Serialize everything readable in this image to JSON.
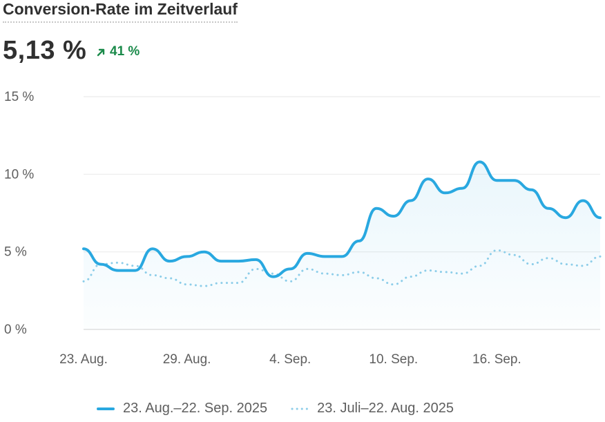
{
  "header": {
    "title": "Conversion-Rate im Zeitverlauf",
    "value": "5,13 %",
    "delta": "41 %",
    "delta_color": "#1a8a4a"
  },
  "legend": {
    "current": "23. Aug.–22. Sep. 2025",
    "previous": "23. Juli–22. Aug. 2025"
  },
  "chart_data": {
    "type": "line",
    "title": "Conversion-Rate im Zeitverlauf",
    "xlabel": "",
    "ylabel": "",
    "ylim": [
      0,
      15
    ],
    "y_ticks": [
      0,
      5,
      10,
      15
    ],
    "y_tick_labels": [
      "0 %",
      "5 %",
      "10 %",
      "15 %"
    ],
    "x": [
      "23. Aug.",
      "24. Aug.",
      "25. Aug.",
      "26. Aug.",
      "27. Aug.",
      "28. Aug.",
      "29. Aug.",
      "30. Aug.",
      "31. Aug.",
      "1. Sep.",
      "2. Sep.",
      "3. Sep.",
      "4. Sep.",
      "5. Sep.",
      "6. Sep.",
      "7. Sep.",
      "8. Sep.",
      "9. Sep.",
      "10. Sep.",
      "11. Sep.",
      "12. Sep.",
      "13. Sep.",
      "14. Sep.",
      "15. Sep.",
      "16. Sep.",
      "17. Sep.",
      "18. Sep.",
      "19. Sep.",
      "20. Sep.",
      "21. Sep.",
      "22. Sep."
    ],
    "x_tick_labels": [
      "23. Aug.",
      "29. Aug.",
      "4. Sep.",
      "10. Sep.",
      "16. Sep."
    ],
    "grid": true,
    "legend_position": "bottom",
    "series": [
      {
        "name": "23. Aug.–22. Sep. 2025",
        "style": "solid",
        "color": "#29a8e0",
        "values": [
          5.2,
          4.2,
          3.8,
          3.8,
          5.2,
          4.4,
          4.7,
          5.0,
          4.4,
          4.4,
          4.5,
          3.4,
          3.9,
          4.9,
          4.7,
          4.7,
          5.7,
          7.8,
          7.3,
          8.3,
          9.7,
          8.8,
          9.1,
          10.8,
          9.6,
          9.6,
          9.0,
          7.8,
          7.2,
          8.3,
          7.2
        ]
      },
      {
        "name": "23. Juli–22. Aug. 2025",
        "style": "dotted",
        "color": "#8ccde9",
        "values": [
          3.1,
          4.2,
          4.3,
          4.1,
          3.5,
          3.3,
          2.9,
          2.8,
          3.0,
          3.0,
          3.9,
          3.6,
          3.1,
          3.9,
          3.6,
          3.5,
          3.7,
          3.3,
          2.9,
          3.4,
          3.8,
          3.7,
          3.6,
          4.1,
          5.1,
          4.8,
          4.2,
          4.6,
          4.2,
          4.1,
          4.7
        ]
      }
    ]
  }
}
